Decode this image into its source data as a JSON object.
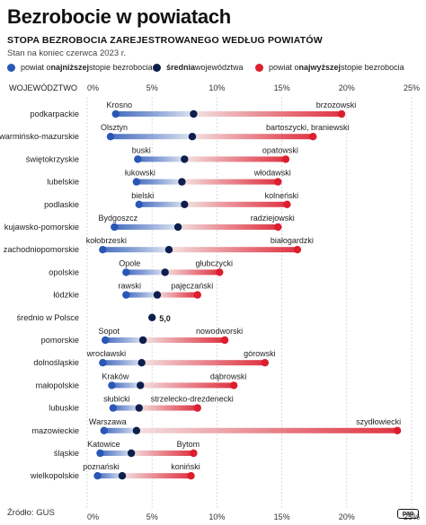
{
  "title": "Bezrobocie w powiatach",
  "subtitle": "STOPA BEZROBOCIA ZAREJESTROWANEGO WEDŁUG POWIATÓW",
  "note": "Stan na koniec czerwca 2023 r.",
  "legend": {
    "min_prefix": "powiat o ",
    "min_bold": "najniższej",
    "min_suffix": " stopie bezrobocia",
    "avg_bold": "średnia",
    "avg_suffix": " województwa",
    "max_prefix": "powiat o ",
    "max_bold": "najwyższej",
    "max_suffix": " stopie bezrobocia"
  },
  "colors": {
    "min": "#2a57b5",
    "avg": "#0d1f4d",
    "max": "#dc1e2e",
    "grid": "#d0d0d0"
  },
  "source": "Źródło: GUS",
  "logo": "pap",
  "chart_data": {
    "type": "dumbbell",
    "x_header": "WOJEWÓDZTWO",
    "xlim": [
      0,
      25
    ],
    "xticks": [
      "0%",
      "5%",
      "10%",
      "15%",
      "20%",
      "25%"
    ],
    "national": {
      "label": "średnio w Polsce",
      "value": 5.0,
      "value_label": "5,0"
    },
    "rows": [
      {
        "region": "podkarpackie",
        "min": 2.2,
        "min_label": "Krosno",
        "avg": 8.2,
        "max": 19.6,
        "max_label": "brzozowski"
      },
      {
        "region": "warmińsko-mazurskie",
        "min": 1.8,
        "min_label": "Olsztyn",
        "avg": 8.1,
        "max": 17.4,
        "max_label": "bartoszycki, braniewski"
      },
      {
        "region": "świętokrzyskie",
        "min": 3.9,
        "min_label": "buski",
        "avg": 7.5,
        "max": 15.3,
        "max_label": "opatowski"
      },
      {
        "region": "lubelskie",
        "min": 3.8,
        "min_label": "łukowski",
        "avg": 7.3,
        "max": 14.7,
        "max_label": "włodawski"
      },
      {
        "region": "podlaskie",
        "min": 4.0,
        "min_label": "bielski",
        "avg": 7.5,
        "max": 15.4,
        "max_label": "kolneński"
      },
      {
        "region": "kujawsko-pomorskie",
        "min": 2.1,
        "min_label": "Bydgoszcz",
        "avg": 7.0,
        "max": 14.7,
        "max_label": "radziejowski"
      },
      {
        "region": "zachodniopomorskie",
        "min": 1.2,
        "min_label": "kołobrzeski",
        "avg": 6.3,
        "max": 16.2,
        "max_label": "białogardzki"
      },
      {
        "region": "opolskie",
        "min": 3.0,
        "min_label": "Opole",
        "avg": 6.0,
        "max": 10.2,
        "max_label": "głubczycki"
      },
      {
        "region": "łódzkie",
        "min": 3.0,
        "min_label": "rawski",
        "avg": 5.4,
        "max": 8.5,
        "max_label": "pajęczański"
      },
      {
        "region": "pomorskie",
        "min": 1.4,
        "min_label": "Sopot",
        "avg": 4.3,
        "max": 10.6,
        "max_label": "nowodworski"
      },
      {
        "region": "dolnośląskie",
        "min": 1.2,
        "min_label": "wrocławski",
        "avg": 4.2,
        "max": 13.7,
        "max_label": "górowski"
      },
      {
        "region": "małopolskie",
        "min": 1.9,
        "min_label": "Kraków",
        "avg": 4.1,
        "max": 11.3,
        "max_label": "dąbrowski"
      },
      {
        "region": "lubuskie",
        "min": 2.0,
        "min_label": "słubicki",
        "avg": 4.0,
        "max": 8.5,
        "max_label": "strzelecko-drezdenecki"
      },
      {
        "region": "mazowieckie",
        "min": 1.3,
        "min_label": "Warszawa",
        "avg": 3.8,
        "max": 23.9,
        "max_label": "szydłowiecki"
      },
      {
        "region": "śląskie",
        "min": 1.0,
        "min_label": "Katowice",
        "avg": 3.4,
        "max": 8.2,
        "max_label": "Bytom"
      },
      {
        "region": "wielkopolskie",
        "min": 0.8,
        "min_label": "poznański",
        "avg": 2.7,
        "max": 8.0,
        "max_label": "koniński"
      }
    ]
  }
}
